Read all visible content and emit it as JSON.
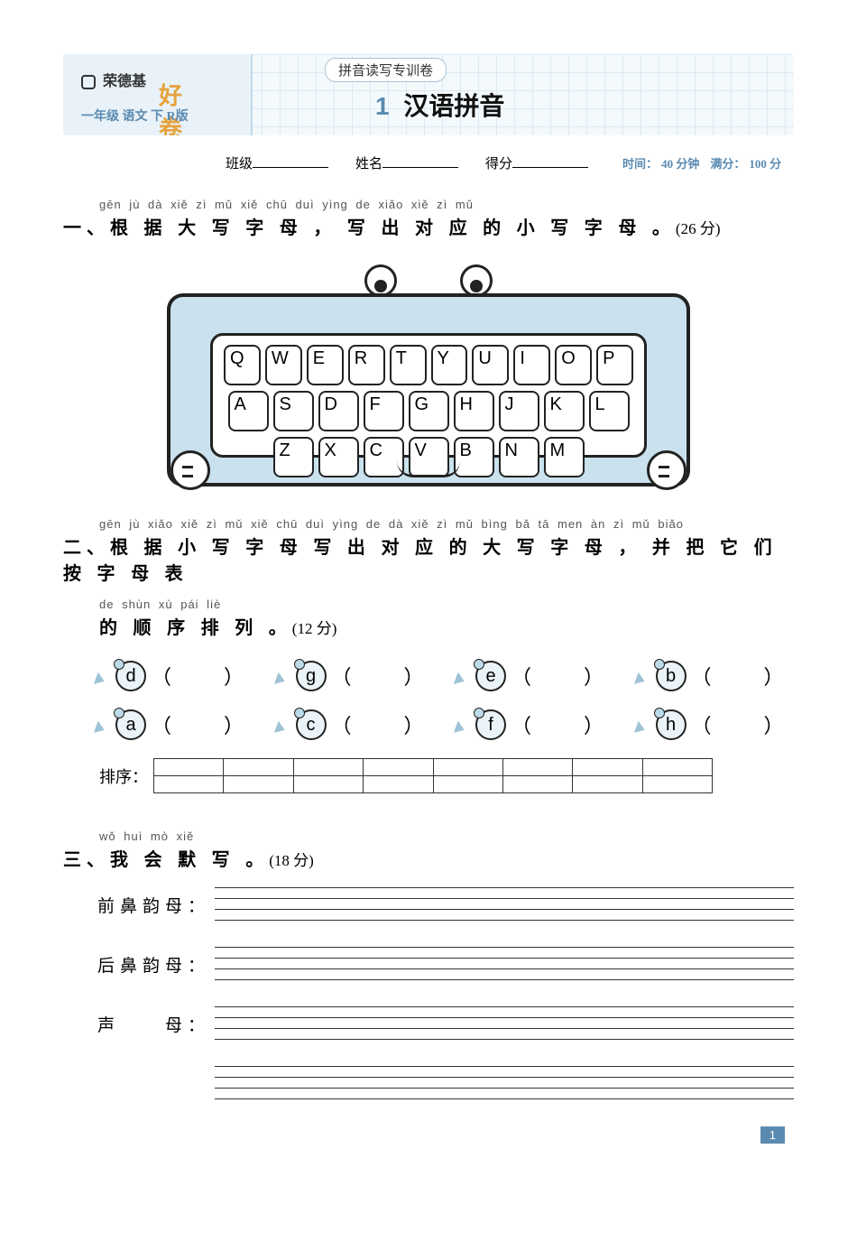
{
  "header": {
    "brand": "荣德基",
    "brand_suffix": "好卷",
    "grade_line": "一年级 语文 下 R版",
    "tab_label": "拼音读写专训卷",
    "title_num": "1",
    "title_text": "汉语拼音"
  },
  "info": {
    "class_label": "班级",
    "name_label": "姓名",
    "score_label": "得分",
    "time_label": "时间：",
    "time_value": "40 分钟",
    "full_label": "满分：",
    "full_value": "100 分"
  },
  "s1": {
    "num": "一、",
    "pinyin": "gēn jù dà xiě zì mǔ   xiě chū duì yìng de xiǎo xiě zì mǔ",
    "text": "根 据 大 写 字 母 ， 写 出 对 应 的 小 写 字 母 。",
    "score": "(26 分)"
  },
  "keyboard": {
    "row1": [
      "Q",
      "W",
      "E",
      "R",
      "T",
      "Y",
      "U",
      "I",
      "O",
      "P"
    ],
    "row2": [
      "A",
      "S",
      "D",
      "F",
      "G",
      "H",
      "J",
      "K",
      "L"
    ],
    "row3": [
      "Z",
      "X",
      "C",
      "V",
      "B",
      "N",
      "M"
    ]
  },
  "s2": {
    "num": "二、",
    "pinyin1": "gēn jù xiǎo xiě zì mǔ xiě chū duì yìng de dà xiě zì mǔ   bìng bǎ tā men àn zì mǔ biǎo",
    "text1": "根 据 小 写 字 母 写 出 对 应 的 大 写 字 母 ， 并 把 它 们 按 字 母 表",
    "pinyin2": "de shùn xù pái liè",
    "text2": "的 顺 序 排 列 。",
    "score": "(12 分)"
  },
  "turtles": {
    "row1": [
      "d",
      "g",
      "e",
      "b"
    ],
    "row2": [
      "a",
      "c",
      "f",
      "h"
    ],
    "paixu_label": "排序：",
    "cols": 8
  },
  "s3": {
    "num": "三、",
    "pinyin": "wǒ huì mò xiě",
    "text": "我 会 默 写 。",
    "score": "(18 分)"
  },
  "write": {
    "label1": "前鼻韵母：",
    "label2": "后鼻韵母：",
    "label3": "声　　母："
  },
  "page_number": "1"
}
